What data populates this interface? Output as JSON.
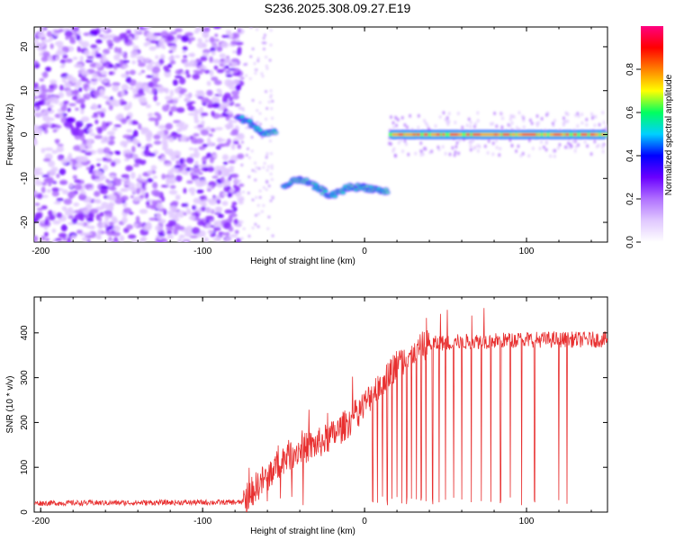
{
  "title": "S236.2025.308.09.27.E19",
  "chart_data": [
    {
      "type": "heatmap",
      "xlabel": "Height of straight line (km)",
      "ylabel": "Frequency (Hz)",
      "xlim": [
        -204,
        150
      ],
      "ylim": [
        -24.5,
        24.5
      ],
      "xticks": [
        -200,
        -100,
        0,
        100
      ],
      "yticks": [
        -20,
        -10,
        0,
        10,
        20
      ],
      "colorbar": {
        "label": "Normalized spectral amplitude",
        "range": [
          0,
          1
        ],
        "ticks": [
          "0.0",
          "0.2",
          "0.4",
          "0.6",
          "0.8"
        ],
        "ticks_values": [
          0.0,
          0.2,
          0.4,
          0.6,
          0.8
        ],
        "colormap": [
          "#ffffff",
          "#e0c8ff",
          "#b070ff",
          "#6a00ff",
          "#0000ff",
          "#00d0ff",
          "#00ff60",
          "#ffff00",
          "#ff8000",
          "#ff0000",
          "#ff0080"
        ]
      },
      "features": {
        "noise_region_x": [
          -204,
          -78
        ],
        "ridge": [
          {
            "x": -78,
            "f": 4
          },
          {
            "x": -70,
            "f": 2.5
          },
          {
            "x": -62,
            "f": 0
          },
          {
            "x": -55,
            "f": 1
          },
          {
            "x": -50,
            "f": -12
          },
          {
            "x": -40,
            "f": -10
          },
          {
            "x": -30,
            "f": -12
          },
          {
            "x": -20,
            "f": -14
          },
          {
            "x": -10,
            "f": -12
          },
          {
            "x": 0,
            "f": -12
          },
          {
            "x": 14,
            "f": -13
          },
          {
            "x": 15,
            "f": 0
          },
          {
            "x": 60,
            "f": 0
          },
          {
            "x": 100,
            "f": 0
          },
          {
            "x": 150,
            "f": 0
          }
        ]
      }
    },
    {
      "type": "line",
      "xlabel": "Height of straight line (km)",
      "ylabel": "SNR (10 * v/v)",
      "xlim": [
        -204,
        150
      ],
      "ylim": [
        0,
        480
      ],
      "xticks": [
        -200,
        -100,
        0,
        100
      ],
      "yticks": [
        0,
        100,
        200,
        300,
        400
      ],
      "color": "#e83030",
      "trend": [
        {
          "x": -204,
          "y": 20
        },
        {
          "x": -75,
          "y": 22
        },
        {
          "x": -70,
          "y": 45
        },
        {
          "x": -60,
          "y": 80
        },
        {
          "x": -50,
          "y": 120
        },
        {
          "x": -40,
          "y": 140
        },
        {
          "x": -30,
          "y": 150
        },
        {
          "x": -20,
          "y": 170
        },
        {
          "x": -10,
          "y": 200
        },
        {
          "x": 0,
          "y": 240
        },
        {
          "x": 10,
          "y": 290
        },
        {
          "x": 20,
          "y": 330
        },
        {
          "x": 30,
          "y": 360
        },
        {
          "x": 40,
          "y": 375
        },
        {
          "x": 60,
          "y": 380
        },
        {
          "x": 100,
          "y": 385
        },
        {
          "x": 150,
          "y": 385
        }
      ],
      "dropouts": [
        -70,
        -60,
        -52,
        -45,
        -38,
        5,
        8,
        11,
        14,
        17,
        20,
        23,
        26,
        29,
        32,
        35,
        38,
        42,
        46,
        50,
        55,
        60,
        66,
        72,
        78,
        84,
        90,
        97,
        105,
        120,
        125
      ]
    }
  ]
}
